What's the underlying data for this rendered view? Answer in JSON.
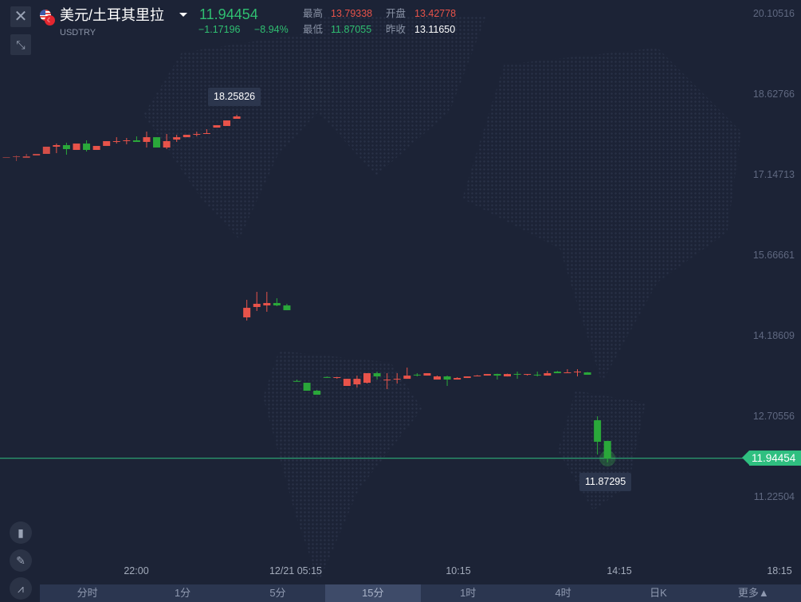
{
  "header": {
    "pair_name": "美元/土耳其里拉",
    "symbol": "USDTRY",
    "price": "11.94454",
    "change": "−1.17196",
    "change_pct": "−8.94%",
    "high_label": "最高",
    "high": "13.79338",
    "open_label": "开盘",
    "open": "13.42778",
    "low_label": "最低",
    "low": "11.87055",
    "prev_close_label": "昨收",
    "prev_close": "13.11650"
  },
  "toolbar": {
    "close_icon": "close-icon",
    "compress_icon": "compress-icon",
    "bottom_icons": [
      "candlestick-icon",
      "pencil-icon",
      "indicator-icon"
    ]
  },
  "colors": {
    "up": "#e8534a",
    "down": "#2aa83a",
    "price_line": "#2fbf80",
    "background": "#1c2336"
  },
  "price_axis": [
    "20.10516",
    "18.62766",
    "17.14713",
    "15.66661",
    "14.18609",
    "12.70556",
    "11.22504"
  ],
  "time_axis": [
    "22:00",
    "12/21 05:15",
    "10:15",
    "14:15",
    "18:15"
  ],
  "current_price_tag": "11.94454",
  "tabs": [
    {
      "label": "分时"
    },
    {
      "label": "1分"
    },
    {
      "label": "5分"
    },
    {
      "label": "15分",
      "active": true
    },
    {
      "label": "1时"
    },
    {
      "label": "4时"
    },
    {
      "label": "日K"
    },
    {
      "label": "更多▲"
    }
  ],
  "chart_data": {
    "type": "candlestick",
    "interval": "15分",
    "ylim": [
      11.0,
      20.10516
    ],
    "current_price": 11.94454,
    "up_color": "red",
    "down_color": "green",
    "annotations": {
      "max": "18.25826",
      "min": "11.87295"
    },
    "ohlc": [
      [
        17.466,
        17.481,
        17.466,
        17.481
      ],
      [
        17.49,
        17.51,
        17.408,
        17.496
      ],
      [
        17.466,
        17.54,
        17.466,
        17.496
      ],
      [
        17.51,
        17.54,
        17.51,
        17.54
      ],
      [
        17.54,
        17.672,
        17.54,
        17.672
      ],
      [
        17.672,
        17.73,
        17.554,
        17.701
      ],
      [
        17.701,
        17.745,
        17.525,
        17.628
      ],
      [
        17.613,
        17.73,
        17.613,
        17.73
      ],
      [
        17.73,
        17.789,
        17.584,
        17.613
      ],
      [
        17.613,
        17.686,
        17.613,
        17.686
      ],
      [
        17.686,
        17.774,
        17.686,
        17.774
      ],
      [
        17.77,
        17.847,
        17.73,
        17.774
      ],
      [
        17.785,
        17.833,
        17.716,
        17.789
      ],
      [
        17.789,
        17.862,
        17.76,
        17.76
      ],
      [
        17.76,
        17.95,
        17.657,
        17.847
      ],
      [
        17.847,
        17.847,
        17.657,
        17.657
      ],
      [
        17.657,
        17.906,
        17.628,
        17.774
      ],
      [
        17.803,
        17.891,
        17.76,
        17.847
      ],
      [
        17.847,
        17.891,
        17.847,
        17.891
      ],
      [
        17.902,
        17.95,
        17.862,
        17.906
      ],
      [
        17.917,
        17.994,
        17.917,
        17.921
      ],
      [
        18.023,
        18.067,
        18.023,
        18.067
      ],
      [
        18.053,
        18.155,
        18.053,
        18.155
      ],
      [
        18.185,
        18.258,
        18.185,
        18.229
      ],
      [
        14.534,
        14.857,
        14.476,
        14.71
      ],
      [
        14.725,
        15.003,
        14.652,
        14.784
      ],
      [
        14.754,
        15.003,
        14.637,
        14.798
      ],
      [
        14.798,
        14.886,
        14.74,
        14.754
      ],
      [
        14.754,
        14.784,
        14.666,
        14.666
      ],
      [
        13.365,
        13.391,
        13.362,
        13.362
      ],
      [
        13.332,
        13.332,
        13.186,
        13.186
      ],
      [
        13.186,
        13.2,
        13.112,
        13.112
      ],
      [
        13.437,
        13.45,
        13.43,
        13.435
      ],
      [
        13.433,
        13.44,
        13.405,
        13.435
      ],
      [
        13.274,
        13.405,
        13.274,
        13.405
      ],
      [
        13.303,
        13.464,
        13.244,
        13.405
      ],
      [
        13.332,
        13.508,
        13.318,
        13.508
      ],
      [
        13.508,
        13.537,
        13.391,
        13.449
      ],
      [
        13.389,
        13.508,
        13.215,
        13.391
      ],
      [
        13.403,
        13.508,
        13.318,
        13.405
      ],
      [
        13.405,
        13.611,
        13.405,
        13.464
      ],
      [
        13.481,
        13.508,
        13.449,
        13.479
      ],
      [
        13.464,
        13.508,
        13.464,
        13.508
      ],
      [
        13.391,
        13.464,
        13.391,
        13.449
      ],
      [
        13.449,
        13.464,
        13.274,
        13.391
      ],
      [
        13.391,
        13.435,
        13.391,
        13.42
      ],
      [
        13.42,
        13.449,
        13.42,
        13.449
      ],
      [
        13.462,
        13.475,
        13.45,
        13.464
      ],
      [
        13.464,
        13.49,
        13.464,
        13.493
      ],
      [
        13.493,
        13.5,
        13.391,
        13.464
      ],
      [
        13.449,
        13.5,
        13.449,
        13.493
      ],
      [
        13.495,
        13.537,
        13.405,
        13.493
      ],
      [
        13.491,
        13.493,
        13.464,
        13.493
      ],
      [
        13.481,
        13.537,
        13.449,
        13.479
      ],
      [
        13.464,
        13.552,
        13.464,
        13.508
      ],
      [
        13.537,
        13.55,
        13.508,
        13.508
      ],
      [
        13.521,
        13.581,
        13.52,
        13.523
      ],
      [
        13.535,
        13.581,
        13.449,
        13.537
      ],
      [
        13.523,
        13.53,
        13.479,
        13.479
      ],
      [
        12.643,
        12.716,
        12.013,
        12.247
      ],
      [
        12.262,
        12.262,
        11.866,
        11.94
      ]
    ]
  }
}
